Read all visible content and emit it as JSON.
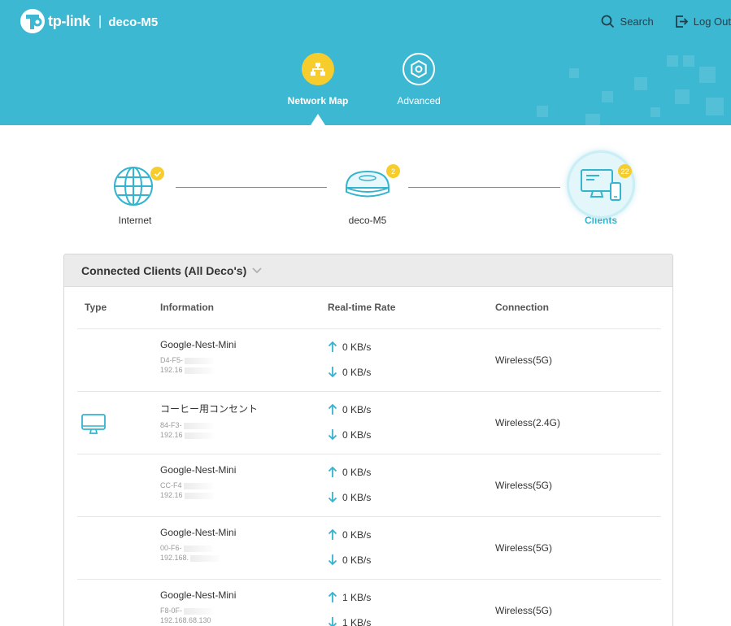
{
  "header": {
    "brand": "tp-link",
    "model": "deco-M5",
    "search_label": "Search",
    "logout_label": "Log Out"
  },
  "nav": {
    "network_map": "Network Map",
    "advanced": "Advanced"
  },
  "topology": {
    "internet_label": "Internet",
    "deco_label": "deco-M5",
    "deco_badge": "2",
    "clients_label": "Clients",
    "clients_badge": "22"
  },
  "panel": {
    "title": "Connected Clients (All Deco's)",
    "columns": {
      "type": "Type",
      "information": "Information",
      "rate": "Real-time Rate",
      "connection": "Connection"
    },
    "rows": [
      {
        "name": "Google-Nest-Mini",
        "mac": "D4-F5-",
        "ip": "192.16",
        "up": "0 KB/s",
        "down": "0 KB/s",
        "connection": "Wireless(5G)",
        "type_icon": ""
      },
      {
        "name": "コーヒー用コンセント",
        "mac": "84-F3-",
        "ip": "192.16",
        "up": "0 KB/s",
        "down": "0 KB/s",
        "connection": "Wireless(2.4G)",
        "type_icon": "computer-icon"
      },
      {
        "name": "Google-Nest-Mini",
        "mac": "CC-F4",
        "ip": "192.16",
        "up": "0 KB/s",
        "down": "0 KB/s",
        "connection": "Wireless(5G)",
        "type_icon": ""
      },
      {
        "name": "Google-Nest-Mini",
        "mac": "00-F6-",
        "ip": "192.168.",
        "up": "0 KB/s",
        "down": "0 KB/s",
        "connection": "Wireless(5G)",
        "type_icon": ""
      },
      {
        "name": "Google-Nest-Mini",
        "mac": "F8-0F-",
        "ip": "192.168.68.130",
        "up": "1 KB/s",
        "down": "1 KB/s",
        "connection": "Wireless(5G)",
        "type_icon": ""
      }
    ]
  },
  "colors": {
    "header_bg": "#3db8d3",
    "accent_yellow": "#f7cd2e",
    "icon_teal": "#34b4cf"
  }
}
